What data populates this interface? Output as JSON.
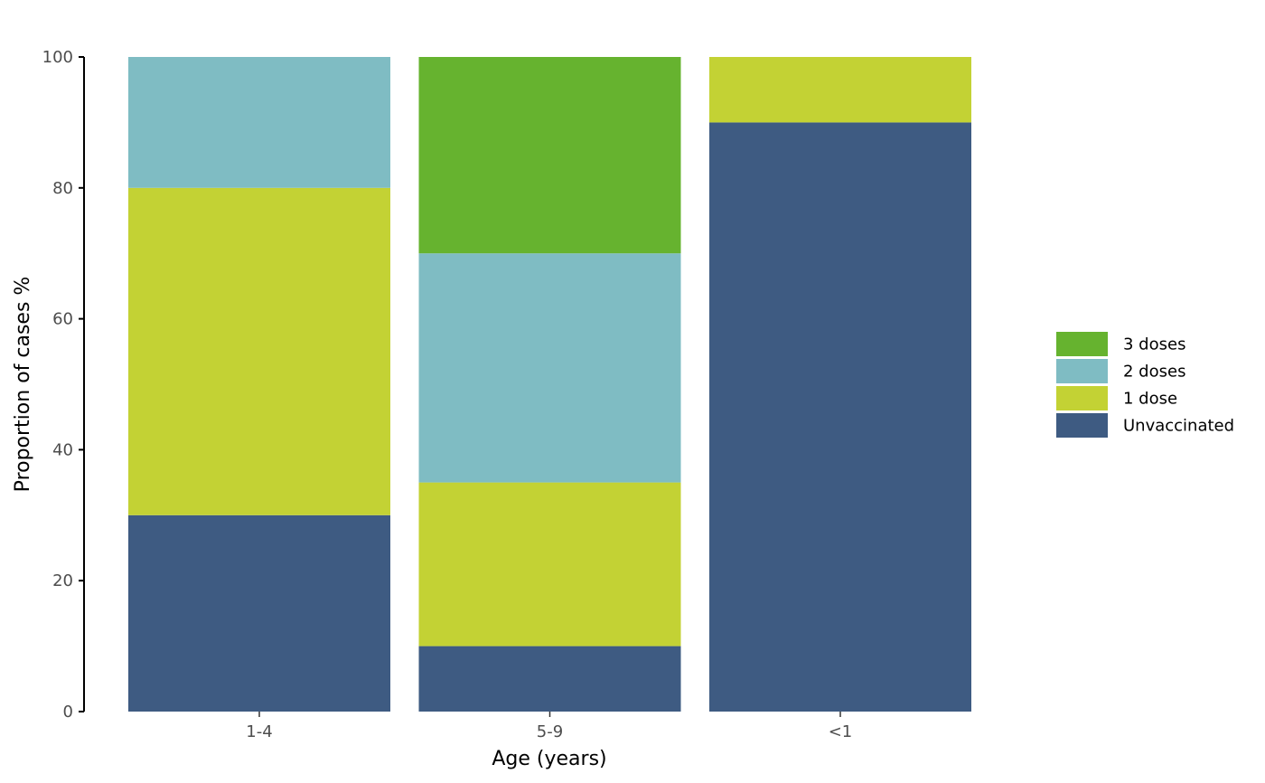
{
  "chart_data": {
    "type": "bar",
    "stacked": true,
    "title": "",
    "xlabel": "Age (years)",
    "ylabel": "Proportion of cases %",
    "ylim": [
      0,
      100
    ],
    "yticks": [
      0,
      20,
      40,
      60,
      80,
      100
    ],
    "categories": [
      "1-4",
      "5-9",
      "<1"
    ],
    "series": [
      {
        "name": "Unvaccinated",
        "color": "#3e5b82",
        "values": [
          30,
          10,
          90
        ]
      },
      {
        "name": "1 dose",
        "color": "#c3d234",
        "values": [
          50,
          25,
          10
        ]
      },
      {
        "name": "2 doses",
        "color": "#7fbcc3",
        "values": [
          20,
          35,
          0
        ]
      },
      {
        "name": "3 doses",
        "color": "#66b32f",
        "values": [
          0,
          30,
          0
        ]
      }
    ],
    "legend": {
      "position": "right",
      "order": [
        "3 doses",
        "2 doses",
        "1 dose",
        "Unvaccinated"
      ]
    },
    "grid": false
  }
}
